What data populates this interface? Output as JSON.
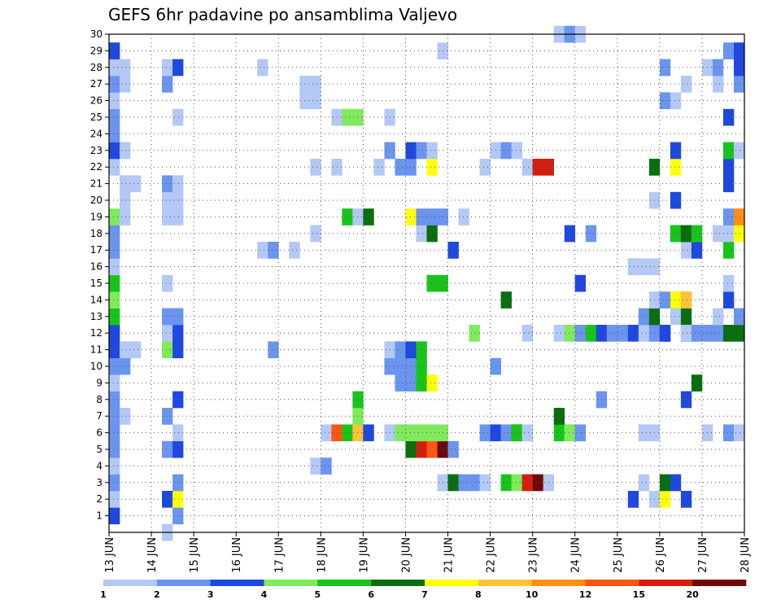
{
  "chart_data": {
    "type": "heatmap",
    "title": "GEFS 6hr padavine po ansamblima Valjevo",
    "x_tick_labels": [
      "13 JUN",
      "14 JUN",
      "15 JUN",
      "16 JUN",
      "17 JUN",
      "18 JUN",
      "19 JUN",
      "20 JUN",
      "21 JUN",
      "22 JUN",
      "23 JUN",
      "24 JUN",
      "25 JUN",
      "26 JUN",
      "27 JUN",
      "28 JUN"
    ],
    "y_tick_labels": [
      "1",
      "2",
      "3",
      "4",
      "5",
      "6",
      "7",
      "8",
      "9",
      "10",
      "11",
      "12",
      "13",
      "14",
      "15",
      "16",
      "17",
      "18",
      "19",
      "20",
      "21",
      "22",
      "23",
      "24",
      "25",
      "26",
      "27",
      "28",
      "29",
      "30"
    ],
    "xlim": [
      0,
      60
    ],
    "ylim": [
      0,
      30
    ],
    "time_step": "6hr",
    "grid": true,
    "legend_levels": [
      "1",
      "2",
      "3",
      "4",
      "5",
      "6",
      "7",
      "8",
      "10",
      "12",
      "15",
      "20"
    ],
    "colors": [
      "#b3c8f5",
      "#6a94ee",
      "#1e48de",
      "#7fea5c",
      "#19c41a",
      "#0a6e10",
      "#ffff0c",
      "#ffc236",
      "#ff8e12",
      "#ff5510",
      "#d21e10",
      "#6e0808"
    ],
    "cells": [
      [
        0,
        1,
        2
      ],
      [
        0,
        2,
        0
      ],
      [
        0,
        3,
        1
      ],
      [
        0,
        4,
        0
      ],
      [
        0,
        5,
        1
      ],
      [
        0,
        6,
        1
      ],
      [
        0,
        7,
        1
      ],
      [
        0,
        8,
        1
      ],
      [
        0,
        9,
        0
      ],
      [
        0,
        10,
        1
      ],
      [
        0,
        11,
        2
      ],
      [
        0,
        12,
        2
      ],
      [
        0,
        13,
        4
      ],
      [
        0,
        14,
        3
      ],
      [
        0,
        15,
        4
      ],
      [
        0,
        16,
        0
      ],
      [
        0,
        17,
        1
      ],
      [
        0,
        18,
        1
      ],
      [
        0,
        19,
        3
      ],
      [
        0,
        22,
        0
      ],
      [
        0,
        23,
        2
      ],
      [
        0,
        24,
        1
      ],
      [
        0,
        25,
        1
      ],
      [
        0,
        26,
        0
      ],
      [
        0,
        27,
        1
      ],
      [
        0,
        28,
        0
      ],
      [
        0,
        29,
        2
      ],
      [
        1,
        7,
        0
      ],
      [
        1,
        10,
        1
      ],
      [
        1,
        11,
        0
      ],
      [
        1,
        19,
        0
      ],
      [
        1,
        20,
        0
      ],
      [
        1,
        21,
        0
      ],
      [
        1,
        23,
        0
      ],
      [
        1,
        27,
        0
      ],
      [
        1,
        28,
        0
      ],
      [
        2,
        11,
        0
      ],
      [
        2,
        21,
        0
      ],
      [
        5,
        0,
        0
      ],
      [
        5,
        2,
        2
      ],
      [
        5,
        5,
        1
      ],
      [
        5,
        7,
        1
      ],
      [
        5,
        11,
        3
      ],
      [
        5,
        12,
        0
      ],
      [
        5,
        13,
        1
      ],
      [
        5,
        15,
        0
      ],
      [
        5,
        19,
        0
      ],
      [
        5,
        20,
        0
      ],
      [
        5,
        21,
        1
      ],
      [
        5,
        27,
        1
      ],
      [
        5,
        28,
        0
      ],
      [
        6,
        1,
        1
      ],
      [
        6,
        2,
        6
      ],
      [
        6,
        3,
        1
      ],
      [
        6,
        5,
        2
      ],
      [
        6,
        6,
        0
      ],
      [
        6,
        8,
        2
      ],
      [
        6,
        11,
        2
      ],
      [
        6,
        12,
        2
      ],
      [
        6,
        13,
        1
      ],
      [
        6,
        19,
        0
      ],
      [
        6,
        20,
        0
      ],
      [
        6,
        21,
        0
      ],
      [
        6,
        25,
        0
      ],
      [
        6,
        28,
        2
      ],
      [
        14,
        17,
        0
      ],
      [
        14,
        28,
        0
      ],
      [
        15,
        11,
        1
      ],
      [
        15,
        17,
        1
      ],
      [
        17,
        17,
        0
      ],
      [
        18,
        26,
        0
      ],
      [
        18,
        27,
        0
      ],
      [
        19,
        4,
        0
      ],
      [
        19,
        18,
        0
      ],
      [
        19,
        22,
        0
      ],
      [
        19,
        26,
        0
      ],
      [
        19,
        27,
        0
      ],
      [
        20,
        4,
        1
      ],
      [
        20,
        6,
        0
      ],
      [
        21,
        6,
        9
      ],
      [
        21,
        22,
        0
      ],
      [
        21,
        25,
        0
      ],
      [
        22,
        6,
        4
      ],
      [
        22,
        19,
        4
      ],
      [
        22,
        25,
        3
      ],
      [
        23,
        6,
        7
      ],
      [
        23,
        7,
        3
      ],
      [
        23,
        8,
        4
      ],
      [
        23,
        19,
        0
      ],
      [
        23,
        25,
        3
      ],
      [
        24,
        6,
        2
      ],
      [
        24,
        19,
        5
      ],
      [
        25,
        22,
        0
      ],
      [
        26,
        6,
        0
      ],
      [
        26,
        10,
        1
      ],
      [
        26,
        11,
        0
      ],
      [
        26,
        23,
        1
      ],
      [
        26,
        25,
        0
      ],
      [
        27,
        6,
        3
      ],
      [
        27,
        9,
        1
      ],
      [
        27,
        10,
        1
      ],
      [
        27,
        11,
        1
      ],
      [
        27,
        22,
        1
      ],
      [
        28,
        5,
        5
      ],
      [
        28,
        6,
        3
      ],
      [
        28,
        9,
        1
      ],
      [
        28,
        10,
        1
      ],
      [
        28,
        11,
        2
      ],
      [
        28,
        19,
        6
      ],
      [
        28,
        22,
        1
      ],
      [
        28,
        23,
        2
      ],
      [
        29,
        5,
        10
      ],
      [
        29,
        6,
        3
      ],
      [
        29,
        9,
        4
      ],
      [
        29,
        10,
        4
      ],
      [
        29,
        11,
        4
      ],
      [
        29,
        18,
        0
      ],
      [
        29,
        19,
        1
      ],
      [
        29,
        23,
        1
      ],
      [
        30,
        5,
        9
      ],
      [
        30,
        6,
        3
      ],
      [
        30,
        9,
        6
      ],
      [
        30,
        15,
        4
      ],
      [
        30,
        18,
        5
      ],
      [
        30,
        19,
        1
      ],
      [
        30,
        22,
        6
      ],
      [
        30,
        23,
        0
      ],
      [
        31,
        3,
        0
      ],
      [
        31,
        5,
        11
      ],
      [
        31,
        6,
        3
      ],
      [
        31,
        15,
        4
      ],
      [
        31,
        19,
        1
      ],
      [
        31,
        29,
        0
      ],
      [
        32,
        3,
        5
      ],
      [
        32,
        5,
        1
      ],
      [
        32,
        17,
        2
      ],
      [
        33,
        3,
        1
      ],
      [
        33,
        19,
        0
      ],
      [
        34,
        3,
        1
      ],
      [
        34,
        12,
        3
      ],
      [
        35,
        3,
        0
      ],
      [
        35,
        6,
        1
      ],
      [
        35,
        22,
        0
      ],
      [
        36,
        6,
        2
      ],
      [
        36,
        10,
        1
      ],
      [
        36,
        23,
        0
      ],
      [
        37,
        3,
        4
      ],
      [
        37,
        6,
        1
      ],
      [
        37,
        14,
        5
      ],
      [
        37,
        23,
        1
      ],
      [
        38,
        3,
        3
      ],
      [
        38,
        6,
        5
      ],
      [
        38,
        6,
        4
      ],
      [
        38,
        23,
        0
      ],
      [
        39,
        3,
        10
      ],
      [
        39,
        6,
        0
      ],
      [
        39,
        12,
        0
      ],
      [
        39,
        22,
        0
      ],
      [
        40,
        3,
        11
      ],
      [
        40,
        22,
        10
      ],
      [
        41,
        22,
        10
      ],
      [
        41,
        3,
        0
      ],
      [
        42,
        6,
        4
      ],
      [
        42,
        7,
        5
      ],
      [
        42,
        12,
        0
      ],
      [
        42,
        30,
        6
      ],
      [
        42,
        30,
        0
      ],
      [
        43,
        6,
        0
      ],
      [
        43,
        6,
        3
      ],
      [
        43,
        12,
        3
      ],
      [
        43,
        18,
        2
      ],
      [
        43,
        30,
        1
      ],
      [
        43,
        30,
        1
      ],
      [
        44,
        6,
        1
      ],
      [
        44,
        12,
        1
      ],
      [
        44,
        15,
        1
      ],
      [
        44,
        15,
        2
      ],
      [
        44,
        30,
        0
      ],
      [
        45,
        12,
        4
      ],
      [
        45,
        18,
        1
      ],
      [
        46,
        12,
        2
      ],
      [
        46,
        8,
        1
      ],
      [
        47,
        12,
        1
      ],
      [
        48,
        12,
        1
      ],
      [
        49,
        12,
        2
      ],
      [
        49,
        2,
        2
      ],
      [
        49,
        16,
        0
      ],
      [
        49,
        16,
        0
      ],
      [
        50,
        16,
        0
      ],
      [
        50,
        12,
        0
      ],
      [
        50,
        13,
        1
      ],
      [
        50,
        6,
        0
      ],
      [
        50,
        3,
        0
      ],
      [
        51,
        6,
        0
      ],
      [
        51,
        2,
        0
      ],
      [
        51,
        12,
        1
      ],
      [
        51,
        20,
        0
      ],
      [
        51,
        22,
        5
      ],
      [
        51,
        13,
        5
      ],
      [
        51,
        14,
        0
      ],
      [
        51,
        16,
        0
      ],
      [
        52,
        2,
        6
      ],
      [
        52,
        3,
        5
      ],
      [
        52,
        12,
        2
      ],
      [
        52,
        12,
        2
      ],
      [
        52,
        14,
        1
      ],
      [
        52,
        28,
        1
      ],
      [
        52,
        26,
        1
      ],
      [
        53,
        3,
        2
      ],
      [
        53,
        13,
        0
      ],
      [
        53,
        14,
        5
      ],
      [
        53,
        14,
        6
      ],
      [
        53,
        20,
        2
      ],
      [
        53,
        22,
        6
      ],
      [
        53,
        23,
        2
      ],
      [
        53,
        26,
        0
      ],
      [
        53,
        18,
        1
      ],
      [
        53,
        18,
        4
      ],
      [
        54,
        12,
        2
      ],
      [
        54,
        13,
        5
      ],
      [
        54,
        14,
        7
      ],
      [
        54,
        14,
        7
      ],
      [
        54,
        17,
        0
      ],
      [
        54,
        18,
        2
      ],
      [
        54,
        18,
        5
      ],
      [
        54,
        8,
        2
      ],
      [
        54,
        2,
        2
      ],
      [
        54,
        12,
        0
      ],
      [
        54,
        27,
        0
      ],
      [
        55,
        12,
        0
      ],
      [
        55,
        17,
        2
      ],
      [
        55,
        18,
        0
      ],
      [
        55,
        18,
        4
      ],
      [
        55,
        9,
        5
      ],
      [
        55,
        12,
        1
      ],
      [
        56,
        6,
        0
      ],
      [
        56,
        12,
        1
      ],
      [
        56,
        28,
        0
      ],
      [
        57,
        12,
        1
      ],
      [
        57,
        13,
        0
      ],
      [
        57,
        18,
        0
      ],
      [
        57,
        27,
        0
      ],
      [
        57,
        28,
        1
      ],
      [
        58,
        6,
        1
      ],
      [
        58,
        12,
        5
      ],
      [
        58,
        14,
        2
      ],
      [
        58,
        15,
        0
      ],
      [
        58,
        17,
        4
      ],
      [
        58,
        18,
        0
      ],
      [
        58,
        19,
        1
      ],
      [
        58,
        21,
        2
      ],
      [
        58,
        22,
        2
      ],
      [
        58,
        23,
        4
      ],
      [
        58,
        25,
        2
      ],
      [
        58,
        29,
        1
      ],
      [
        59,
        6,
        0
      ],
      [
        59,
        12,
        5
      ],
      [
        59,
        13,
        1
      ],
      [
        59,
        18,
        6
      ],
      [
        59,
        19,
        6
      ],
      [
        59,
        19,
        8
      ],
      [
        59,
        23,
        0
      ],
      [
        59,
        27,
        1
      ],
      [
        59,
        28,
        2
      ],
      [
        59,
        29,
        2
      ]
    ]
  }
}
